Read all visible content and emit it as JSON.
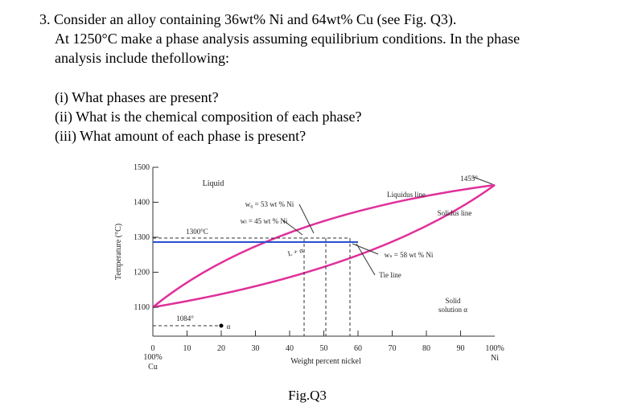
{
  "question": {
    "lines": [
      "3. Consider an alloy containing 36wt% Ni and 64wt% Cu (see Fig. Q3).",
      "At 1250°C make a phase analysis assuming equilibrium conditions. In the phase",
      "analysis include thefollowing:"
    ]
  },
  "subquestions": [
    "(i) What phases are present?",
    "(ii) What is the chemical composition of each phase?",
    "(iii) What amount of each phase is present?"
  ],
  "figure": {
    "y_axis_label": "Temperature (°C)",
    "y_tick_labels": [
      "1500",
      "1400",
      "1300",
      "1200",
      "1100"
    ],
    "x_tick_labels": [
      "0",
      "10",
      "20",
      "30",
      "40",
      "50",
      "60",
      "70",
      "80",
      "90"
    ],
    "x_left_end": [
      "100%",
      "Cu"
    ],
    "x_right_end": [
      "100%",
      "Ni"
    ],
    "x_axis_label": "Weight percent nickel",
    "annotations": [
      "Liquid",
      "Liquidus line",
      "1455°",
      "Solidus line",
      "w₀ = 53 wt % Ni",
      "wₗ = 45 wt % Ni",
      "1300°C",
      "L + α",
      "wₛ = 58 wt % Ni",
      "Tie line",
      "Solid",
      "solution α",
      "1084°",
      "α"
    ],
    "caption": "Fig.Q3"
  }
}
